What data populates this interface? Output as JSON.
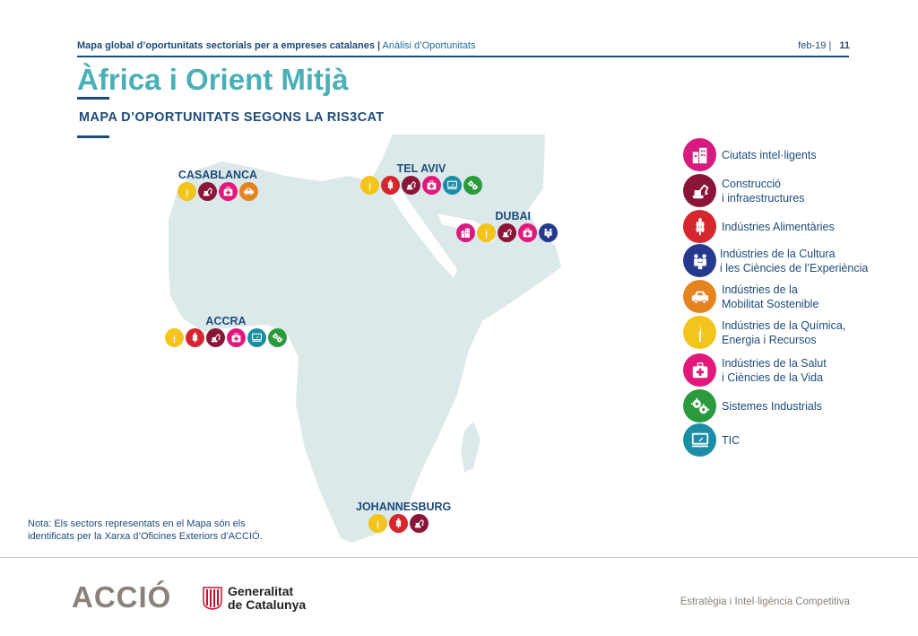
{
  "header": {
    "doc_title": "Mapa global d’oportunitats sectorials per a empreses catalanes",
    "separator": "|",
    "doc_section": "Anàlisi d’Oportunitats",
    "date": "feb-19",
    "page_separator": "|",
    "page_number": "11"
  },
  "title": "Àfrica i Orient Mitjà",
  "subtitle": "MAPA D’OPORTUNITATS SEGONS LA RIS3CAT",
  "sectors": {
    "ciutats": {
      "label_1": "Ciutats intel·ligents",
      "label_2": "",
      "color": "#d81b7f",
      "icon": "buildings-icon"
    },
    "construccio": {
      "label_1": "Construcció",
      "label_2": "i infraestructures",
      "color": "#8a1538",
      "icon": "excavator-icon"
    },
    "alimentaries": {
      "label_1": "Indústries Alimentàries",
      "label_2": "",
      "color": "#d6262e",
      "icon": "wheat-icon"
    },
    "cultura": {
      "label_1": "Indústries de la Cultura",
      "label_2": "i les Ciències de l’Experiència",
      "color": "#253a8e",
      "icon": "people-icon"
    },
    "mobilitat": {
      "label_1": "Indústries de la",
      "label_2": "Mobilitat Sostenible",
      "color": "#e5831f",
      "icon": "cars-icon"
    },
    "quimica": {
      "label_1": "Indústries de la Química,",
      "label_2": "Energia i Recursos",
      "color": "#f3c41b",
      "icon": "wind-turbine-icon"
    },
    "salut": {
      "label_1": "Indústries de la Salut",
      "label_2": "i Ciències de la Vida",
      "color": "#e2197b",
      "icon": "medical-kit-icon"
    },
    "industrials": {
      "label_1": "Sistemes Industrials",
      "label_2": "",
      "color": "#2b9a3d",
      "icon": "gears-icon"
    },
    "tic": {
      "label_1": "TIC",
      "label_2": "",
      "color": "#1b8ea5",
      "icon": "computer-icon"
    }
  },
  "legend_order": [
    "ciutats",
    "construccio",
    "alimentaries",
    "cultura",
    "mobilitat",
    "quimica",
    "salut",
    "industrials",
    "tic"
  ],
  "cities": [
    {
      "name": "CASABLANCA",
      "sectors": [
        "quimica",
        "construccio",
        "salut",
        "mobilitat"
      ]
    },
    {
      "name": "TEL AVIV",
      "sectors": [
        "quimica",
        "alimentaries",
        "construccio",
        "salut",
        "tic",
        "industrials"
      ]
    },
    {
      "name": "DUBAI",
      "sectors": [
        "ciutats",
        "quimica",
        "construccio",
        "salut",
        "cultura"
      ]
    },
    {
      "name": "ACCRA",
      "sectors": [
        "quimica",
        "alimentaries",
        "construccio",
        "salut",
        "tic",
        "industrials"
      ]
    },
    {
      "name": "JOHANNESBURG",
      "sectors": [
        "quimica",
        "alimentaries",
        "construccio"
      ]
    }
  ],
  "note": {
    "line1": "Nota: Els sectors representats en el Mapa són els",
    "line2": "identificats per la Xarxa d’Oficines Exteriors d’ACCIÓ."
  },
  "footer": {
    "brand": "ACCIÓ",
    "gov_line1": "Generalitat",
    "gov_line2": "de Catalunya",
    "right_text": "Estratègia i Intel·ligència Competitiva"
  },
  "colors": {
    "navy": "#1d4b7a",
    "teal": "#4aafb7",
    "land": "#dce9ea",
    "grey": "#8a8279"
  }
}
